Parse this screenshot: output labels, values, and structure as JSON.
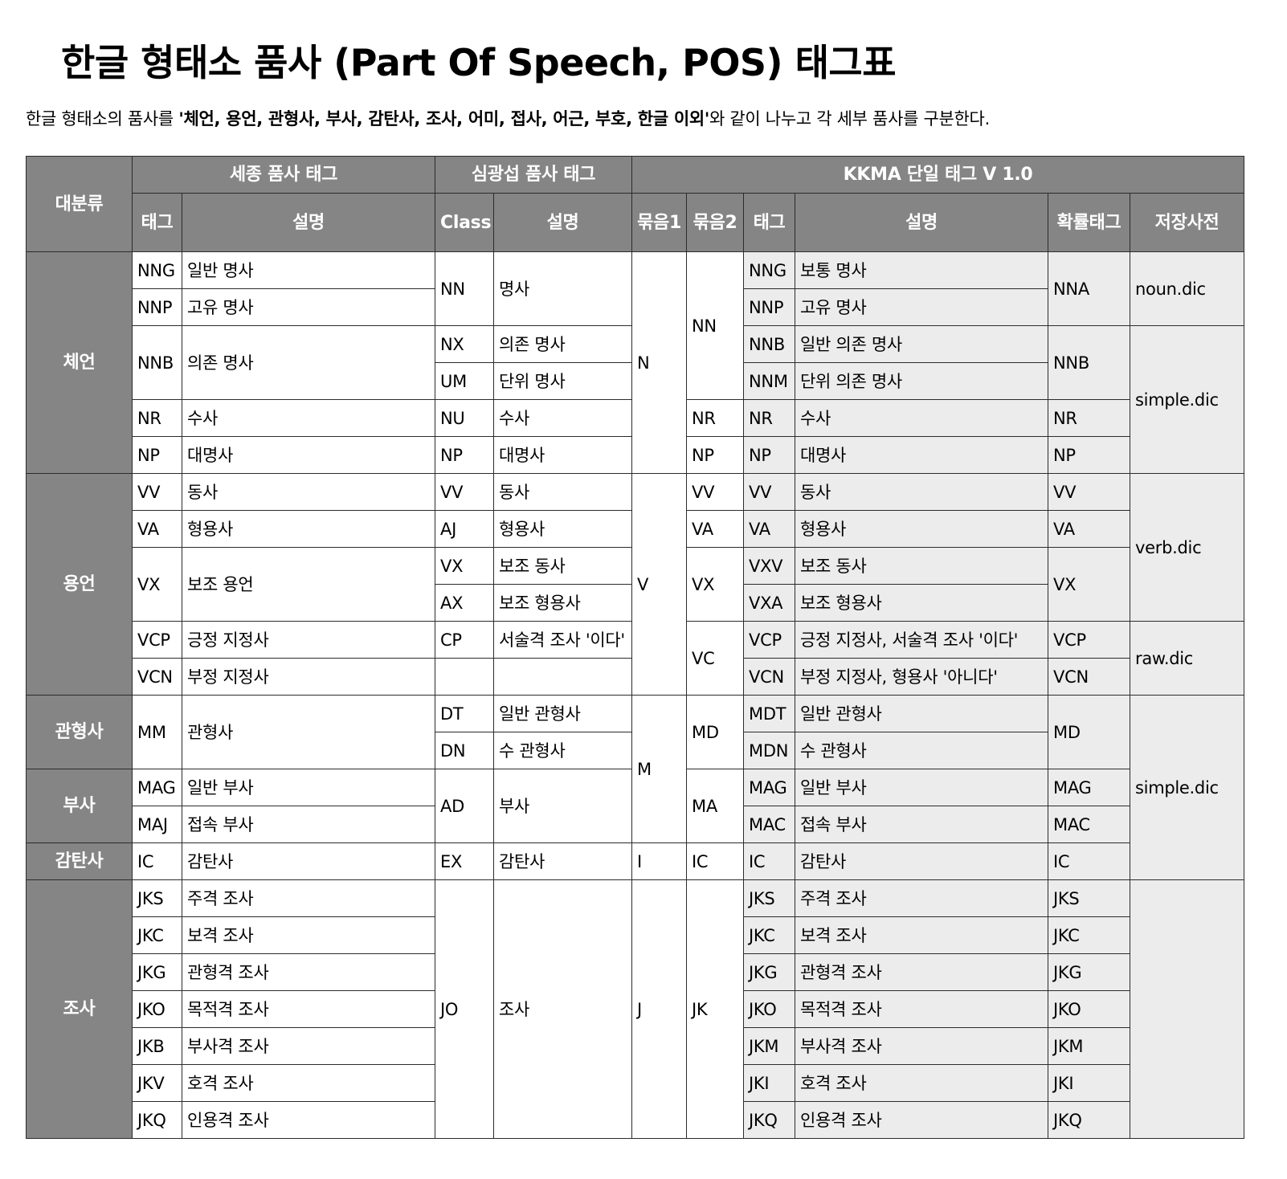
{
  "title": "한글 형태소 품사 (Part Of Speech, POS) 태그표",
  "intro": {
    "prefix": "한글 형태소의 품사를 ",
    "bold": "'체언, 용언, 관형사, 부사, 감탄사, 조사, 어미, 접사, 어근, 부호, 한글 이외'",
    "suffix": "와 같이 나누고 각 세부 품사를 구분한다."
  },
  "header": {
    "category": "대분류",
    "sejong": "세종 품사 태그",
    "shim": "심광섭 품사 태그",
    "kkma": "KKMA 단일 태그 V 1.0",
    "tag": "태그",
    "desc": "설명",
    "class": "Class",
    "group1": "묶음1",
    "group2": "묶음2",
    "prob_tag": "확률태그",
    "dict": "저장사전"
  },
  "rows": [
    {
      "cat": "체언",
      "s_tag": "NNG",
      "s_desc": "일반 명사",
      "c_tag": "NN",
      "c_desc": "명사",
      "g1": "N",
      "g2": "NN",
      "k_tag": "NNG",
      "k_desc": "보통 명사",
      "prob": "NNA",
      "dict": "noun.dic"
    },
    {
      "s_tag": "NNP",
      "s_desc": "고유 명사",
      "k_tag": "NNP",
      "k_desc": "고유 명사"
    },
    {
      "s_tag": "NNB",
      "s_desc": "의존 명사",
      "c_tag": "NX",
      "c_desc": "의존 명사",
      "k_tag": "NNB",
      "k_desc": "일반 의존 명사",
      "prob": "NNB",
      "dict": "simple.dic"
    },
    {
      "c_tag": "UM",
      "c_desc": "단위 명사",
      "k_tag": "NNM",
      "k_desc": "단위 의존 명사"
    },
    {
      "s_tag": "NR",
      "s_desc": "수사",
      "c_tag": "NU",
      "c_desc": "수사",
      "g2": "NR",
      "k_tag": "NR",
      "k_desc": "수사",
      "prob": "NR"
    },
    {
      "s_tag": "NP",
      "s_desc": "대명사",
      "c_tag": "NP",
      "c_desc": "대명사",
      "g2": "NP",
      "k_tag": "NP",
      "k_desc": "대명사",
      "prob": "NP"
    },
    {
      "cat": "용언",
      "s_tag": "VV",
      "s_desc": "동사",
      "c_tag": "VV",
      "c_desc": "동사",
      "g1": "V",
      "g2": "VV",
      "k_tag": "VV",
      "k_desc": "동사",
      "prob": "VV",
      "dict": "verb.dic"
    },
    {
      "s_tag": "VA",
      "s_desc": "형용사",
      "c_tag": "AJ",
      "c_desc": "형용사",
      "g2": "VA",
      "k_tag": "VA",
      "k_desc": "형용사",
      "prob": "VA"
    },
    {
      "s_tag": "VX",
      "s_desc": "보조 용언",
      "c_tag": "VX",
      "c_desc": "보조 동사",
      "g2": "VX",
      "k_tag": "VXV",
      "k_desc": "보조 동사",
      "prob": "VX"
    },
    {
      "c_tag": "AX",
      "c_desc": "보조 형용사",
      "k_tag": "VXA",
      "k_desc": "보조 형용사"
    },
    {
      "s_tag": "VCP",
      "s_desc": "긍정 지정사",
      "c_tag": "CP",
      "c_desc": "서술격 조사 '이다'",
      "g2": "VC",
      "k_tag": "VCP",
      "k_desc": "긍정 지정사, 서술격 조사 '이다'",
      "prob": "VCP",
      "dict": "raw.dic"
    },
    {
      "s_tag": "VCN",
      "s_desc": "부정 지정사",
      "c_tag": "",
      "c_desc": "",
      "k_tag": "VCN",
      "k_desc": "부정 지정사, 형용사 '아니다'",
      "prob": "VCN"
    },
    {
      "cat": "관형사",
      "s_tag": "MM",
      "s_desc": "관형사",
      "c_tag": "DT",
      "c_desc": "일반 관형사",
      "g1": "M",
      "g2": "MD",
      "k_tag": "MDT",
      "k_desc": "일반 관형사",
      "prob": "MD",
      "dict": "simple.dic"
    },
    {
      "c_tag": "DN",
      "c_desc": "수 관형사",
      "k_tag": "MDN",
      "k_desc": "수 관형사"
    },
    {
      "cat": "부사",
      "s_tag": "MAG",
      "s_desc": "일반 부사",
      "c_tag": "AD",
      "c_desc": "부사",
      "g2": "MA",
      "k_tag": "MAG",
      "k_desc": "일반 부사",
      "prob": "MAG"
    },
    {
      "s_tag": "MAJ",
      "s_desc": "접속 부사",
      "k_tag": "MAC",
      "k_desc": "접속 부사",
      "prob": "MAC"
    },
    {
      "cat": "감탄사",
      "s_tag": "IC",
      "s_desc": "감탄사",
      "c_tag": "EX",
      "c_desc": "감탄사",
      "g1": "I",
      "g2": "IC",
      "k_tag": "IC",
      "k_desc": "감탄사",
      "prob": "IC"
    },
    {
      "cat": "조사",
      "s_tag": "JKS",
      "s_desc": "주격 조사",
      "c_tag": "JO",
      "c_desc": "조사",
      "g1": "J",
      "g2": "JK",
      "k_tag": "JKS",
      "k_desc": "주격 조사",
      "prob": "JKS",
      "dict": ""
    },
    {
      "s_tag": "JKC",
      "s_desc": "보격 조사",
      "k_tag": "JKC",
      "k_desc": "보격 조사",
      "prob": "JKC"
    },
    {
      "s_tag": "JKG",
      "s_desc": "관형격 조사",
      "k_tag": "JKG",
      "k_desc": "관형격 조사",
      "prob": "JKG"
    },
    {
      "s_tag": "JKO",
      "s_desc": "목적격 조사",
      "k_tag": "JKO",
      "k_desc": "목적격 조사",
      "prob": "JKO"
    },
    {
      "s_tag": "JKB",
      "s_desc": "부사격 조사",
      "k_tag": "JKM",
      "k_desc": "부사격 조사",
      "prob": "JKM"
    },
    {
      "s_tag": "JKV",
      "s_desc": "호격 조사",
      "k_tag": "JKI",
      "k_desc": "호격 조사",
      "prob": "JKI"
    },
    {
      "s_tag": "JKQ",
      "s_desc": "인용격 조사",
      "k_tag": "JKQ",
      "k_desc": "인용격 조사",
      "prob": "JKQ"
    }
  ]
}
